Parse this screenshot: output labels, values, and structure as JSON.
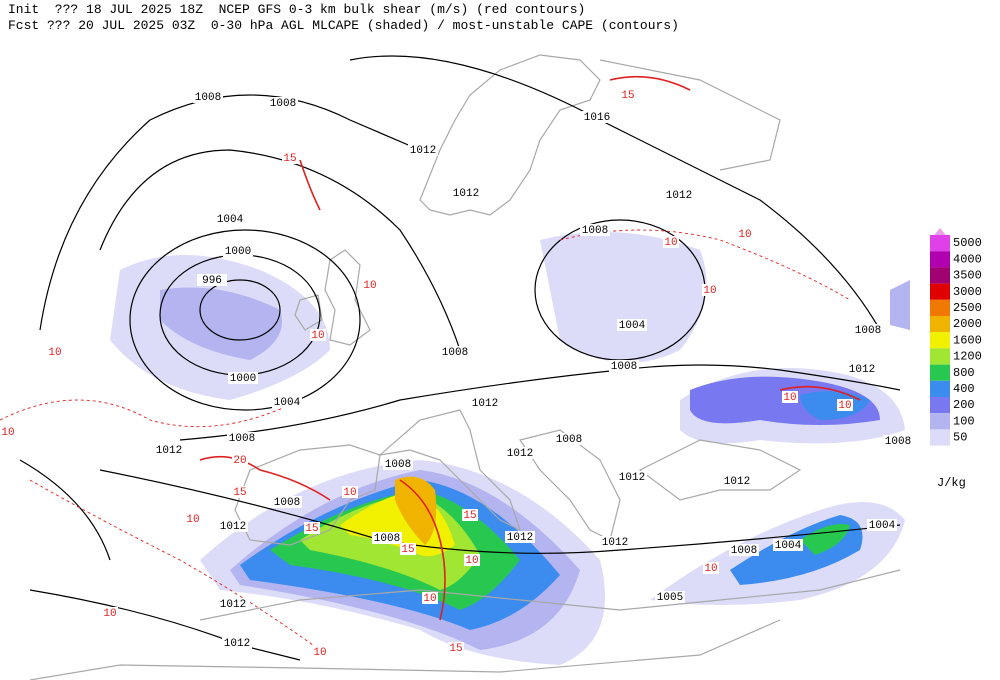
{
  "header": {
    "line1": "Init  ??? 18 JUL 2025 18Z  NCEP GFS 0-3 km bulk shear (m/s) (red contours)",
    "line2": "Fcst ??? 20 JUL 2025 03Z  0-30 hPa AGL MLCAPE (shaded) / most-unstable CAPE (contours)"
  },
  "colorbar": {
    "unit": "J/kg",
    "levels": [
      {
        "value": 5000,
        "color": "#e040e8"
      },
      {
        "value": 4000,
        "color": "#b000b0"
      },
      {
        "value": 3500,
        "color": "#a00070"
      },
      {
        "value": 3000,
        "color": "#e00000"
      },
      {
        "value": 2500,
        "color": "#f07800"
      },
      {
        "value": 2000,
        "color": "#f0b400"
      },
      {
        "value": 1600,
        "color": "#f0f000"
      },
      {
        "value": 1200,
        "color": "#a0e632"
      },
      {
        "value": 800,
        "color": "#28c850"
      },
      {
        "value": 400,
        "color": "#3c8cf0"
      },
      {
        "value": 200,
        "color": "#7878f0"
      },
      {
        "value": 100,
        "color": "#b4b4f0"
      },
      {
        "value": 50,
        "color": "#dcdcf8"
      }
    ]
  },
  "isobar_labels": [
    1008,
    1008,
    1016,
    1012,
    1012,
    1012,
    1004,
    1008,
    1000,
    996,
    1004,
    1008,
    1008,
    1008,
    1000,
    1012,
    1004,
    1012,
    1008,
    1012,
    1008,
    1012,
    1008,
    1012,
    1012,
    1008,
    1012,
    1004,
    1008,
    1012,
    1012,
    1008,
    1004,
    1005,
    1012,
    1012,
    1008
  ],
  "shear_labels": [
    15,
    10,
    10,
    10,
    10,
    10,
    10,
    10,
    10,
    15,
    20,
    15,
    10,
    10,
    15,
    15,
    15,
    10,
    10,
    15,
    10,
    10,
    10,
    10
  ]
}
